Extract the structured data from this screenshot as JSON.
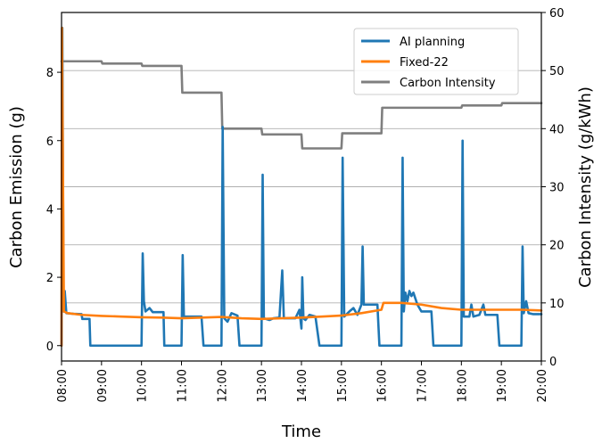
{
  "chart_data": {
    "type": "line",
    "xlabel": "Time",
    "ylabel_left": "Carbon Emission (g)",
    "ylabel_right": "Carbon Intensity (g/kWh)",
    "x_ticks": [
      "08:00",
      "09:00",
      "10:00",
      "11:00",
      "12:00",
      "13:00",
      "14:00",
      "15:00",
      "16:00",
      "17:00",
      "18:00",
      "19:00",
      "20:00"
    ],
    "y_left_ticks": [
      0,
      2,
      4,
      6,
      8
    ],
    "y_right_ticks": [
      0,
      10,
      20,
      30,
      40,
      50,
      60
    ],
    "xlim_hours": [
      8,
      20
    ],
    "ylim_left": [
      -0.45,
      9.75
    ],
    "ylim_right": [
      0,
      60
    ],
    "right_axis_grid": true,
    "legend_position": "top-right",
    "legend": [
      "AI planning",
      "Fixed-22",
      "Carbon Intensity"
    ],
    "series": [
      {
        "name": "AI planning",
        "axis": "left",
        "color": "#1f77b4",
        "points": [
          [
            8.0,
            0
          ],
          [
            8.02,
            9.3
          ],
          [
            8.05,
            1.0
          ],
          [
            8.08,
            1.6
          ],
          [
            8.12,
            0.95
          ],
          [
            8.3,
            0.93
          ],
          [
            8.5,
            0.92
          ],
          [
            8.52,
            0.78
          ],
          [
            8.7,
            0.78
          ],
          [
            8.72,
            0
          ],
          [
            10.0,
            0
          ],
          [
            10.03,
            2.7
          ],
          [
            10.06,
            1.3
          ],
          [
            10.1,
            1.0
          ],
          [
            10.2,
            1.1
          ],
          [
            10.28,
            0.98
          ],
          [
            10.55,
            0.98
          ],
          [
            10.57,
            0
          ],
          [
            11.0,
            0
          ],
          [
            11.03,
            2.65
          ],
          [
            11.06,
            0.85
          ],
          [
            11.5,
            0.85
          ],
          [
            11.55,
            0
          ],
          [
            12.0,
            0
          ],
          [
            12.03,
            6.4
          ],
          [
            12.07,
            0.8
          ],
          [
            12.15,
            0.7
          ],
          [
            12.25,
            0.95
          ],
          [
            12.4,
            0.88
          ],
          [
            12.45,
            0
          ],
          [
            13.0,
            0
          ],
          [
            13.03,
            5.0
          ],
          [
            13.06,
            0.8
          ],
          [
            13.2,
            0.75
          ],
          [
            13.3,
            0.8
          ],
          [
            13.45,
            0.82
          ],
          [
            13.52,
            2.2
          ],
          [
            13.56,
            0.8
          ],
          [
            13.85,
            0.8
          ],
          [
            13.95,
            1.05
          ],
          [
            14.0,
            0.5
          ],
          [
            14.02,
            2.0
          ],
          [
            14.05,
            0.8
          ],
          [
            14.1,
            0.75
          ],
          [
            14.2,
            0.9
          ],
          [
            14.35,
            0.85
          ],
          [
            14.45,
            0
          ],
          [
            15.0,
            0
          ],
          [
            15.03,
            5.5
          ],
          [
            15.07,
            0.85
          ],
          [
            15.2,
            1.0
          ],
          [
            15.3,
            1.1
          ],
          [
            15.4,
            0.9
          ],
          [
            15.5,
            1.2
          ],
          [
            15.53,
            2.9
          ],
          [
            15.56,
            1.2
          ],
          [
            15.9,
            1.2
          ],
          [
            15.95,
            0
          ],
          [
            16.5,
            0
          ],
          [
            16.53,
            5.5
          ],
          [
            16.56,
            1.0
          ],
          [
            16.6,
            1.55
          ],
          [
            16.65,
            1.3
          ],
          [
            16.7,
            1.6
          ],
          [
            16.75,
            1.45
          ],
          [
            16.8,
            1.55
          ],
          [
            16.9,
            1.2
          ],
          [
            17.0,
            1.0
          ],
          [
            17.25,
            1.0
          ],
          [
            17.3,
            0
          ],
          [
            18.0,
            0
          ],
          [
            18.03,
            6.0
          ],
          [
            18.06,
            0.85
          ],
          [
            18.2,
            0.85
          ],
          [
            18.25,
            1.2
          ],
          [
            18.3,
            0.85
          ],
          [
            18.45,
            0.9
          ],
          [
            18.55,
            1.2
          ],
          [
            18.6,
            0.9
          ],
          [
            18.9,
            0.9
          ],
          [
            18.95,
            0
          ],
          [
            19.5,
            0
          ],
          [
            19.53,
            2.9
          ],
          [
            19.56,
            0.95
          ],
          [
            19.62,
            1.3
          ],
          [
            19.68,
            0.95
          ],
          [
            19.8,
            0.92
          ],
          [
            20.0,
            0.92
          ]
        ]
      },
      {
        "name": "Fixed-22",
        "axis": "left",
        "color": "#ff7f0e",
        "points": [
          [
            8.0,
            0
          ],
          [
            8.01,
            9.3
          ],
          [
            8.06,
            1.0
          ],
          [
            8.15,
            0.95
          ],
          [
            8.5,
            0.9
          ],
          [
            9.0,
            0.87
          ],
          [
            9.5,
            0.85
          ],
          [
            10.0,
            0.83
          ],
          [
            10.5,
            0.82
          ],
          [
            11.0,
            0.8
          ],
          [
            11.5,
            0.82
          ],
          [
            12.0,
            0.84
          ],
          [
            12.5,
            0.8
          ],
          [
            13.0,
            0.78
          ],
          [
            13.5,
            0.8
          ],
          [
            14.0,
            0.82
          ],
          [
            14.5,
            0.85
          ],
          [
            15.0,
            0.88
          ],
          [
            15.5,
            0.95
          ],
          [
            16.0,
            1.05
          ],
          [
            16.05,
            1.25
          ],
          [
            16.5,
            1.25
          ],
          [
            17.0,
            1.2
          ],
          [
            17.5,
            1.1
          ],
          [
            18.0,
            1.05
          ],
          [
            18.5,
            1.05
          ],
          [
            19.0,
            1.05
          ],
          [
            19.5,
            1.05
          ],
          [
            20.0,
            1.03
          ]
        ]
      },
      {
        "name": "Carbon Intensity",
        "axis": "right",
        "color": "#7f7f7f",
        "points": [
          [
            8.0,
            51.6
          ],
          [
            9.0,
            51.6
          ],
          [
            9.02,
            51.2
          ],
          [
            10.0,
            51.2
          ],
          [
            10.02,
            50.8
          ],
          [
            11.0,
            50.8
          ],
          [
            11.02,
            46.2
          ],
          [
            12.0,
            46.2
          ],
          [
            12.02,
            40.0
          ],
          [
            13.0,
            40.0
          ],
          [
            13.02,
            39.0
          ],
          [
            14.0,
            39.0
          ],
          [
            14.02,
            36.6
          ],
          [
            15.0,
            36.6
          ],
          [
            15.02,
            39.2
          ],
          [
            16.0,
            39.2
          ],
          [
            16.02,
            43.6
          ],
          [
            18.0,
            43.6
          ],
          [
            18.02,
            44.0
          ],
          [
            19.0,
            44.0
          ],
          [
            19.02,
            44.4
          ],
          [
            20.0,
            44.4
          ]
        ]
      }
    ]
  }
}
